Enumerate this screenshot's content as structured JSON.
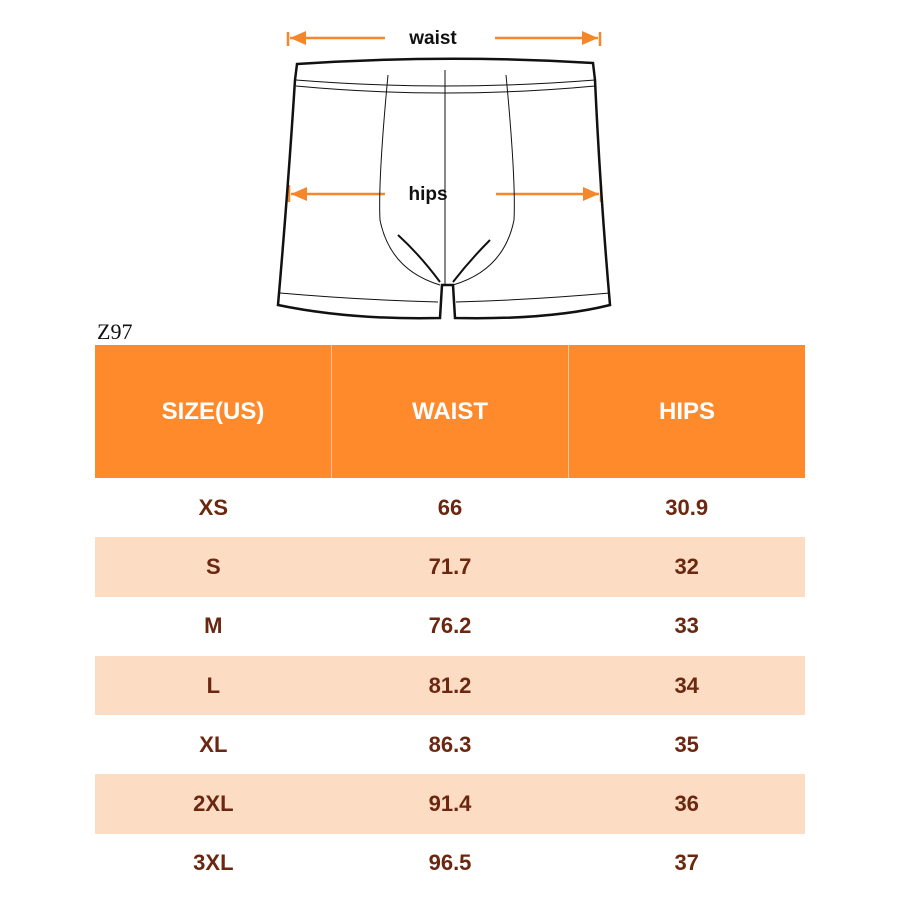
{
  "diagram": {
    "waist_label": "waist",
    "hips_label": "hips",
    "arrow_color": "#f5872a"
  },
  "product_code": "Z97",
  "table": {
    "headers": [
      "SIZE(US)",
      "WAIST",
      "HIPS"
    ],
    "header_color": "#ff8a2b",
    "rows": [
      [
        "XS",
        "66",
        "30.9"
      ],
      [
        "S",
        "71.7",
        "32"
      ],
      [
        "M",
        "76.2",
        "33"
      ],
      [
        "L",
        "81.2",
        "34"
      ],
      [
        "XL",
        "86.3",
        "35"
      ],
      [
        "2XL",
        "91.4",
        "36"
      ],
      [
        "3XL",
        "96.5",
        "37"
      ]
    ]
  }
}
